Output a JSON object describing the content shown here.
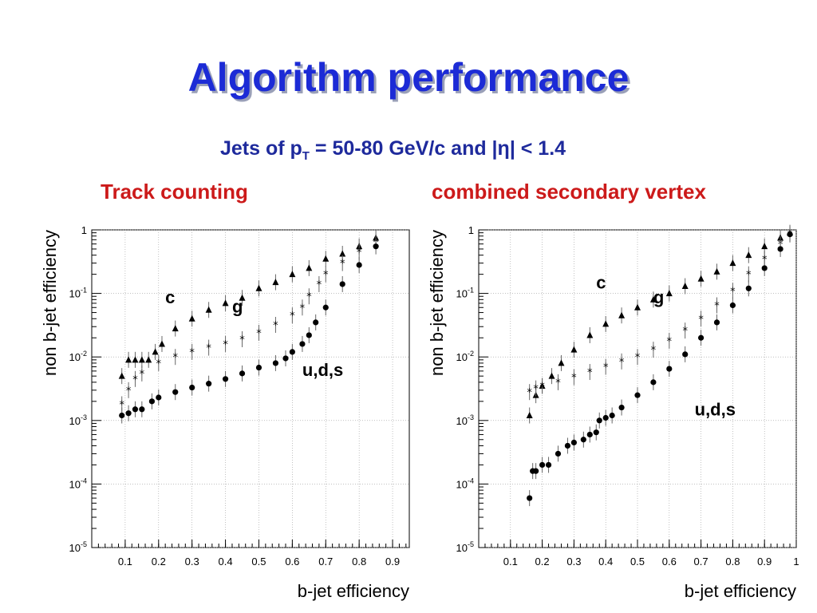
{
  "slide": {
    "title": "Algorithm performance",
    "subtitle_prefix": "Jets of p",
    "subtitle_sub": "T",
    "subtitle_suffix": " = 50-80 GeV/c and |η| < 1.4"
  },
  "chart_data": [
    {
      "type": "scatter",
      "title": "Track counting",
      "xlabel": "b-jet efficiency",
      "ylabel": "non b-jet efficiency",
      "xlim": [
        0.0,
        0.95
      ],
      "ylim": [
        1e-05,
        1
      ],
      "yscale": "log",
      "grid": true,
      "x_ticks": [
        "0.1",
        "0.2",
        "0.3",
        "0.4",
        "0.5",
        "0.6",
        "0.7",
        "0.8",
        "0.9"
      ],
      "y_ticks": [
        {
          "base": "10",
          "exp": "-5"
        },
        {
          "base": "10",
          "exp": "-4"
        },
        {
          "base": "10",
          "exp": "-3"
        },
        {
          "base": "10",
          "exp": "-2"
        },
        {
          "base": "10",
          "exp": "-1"
        },
        {
          "base": "1",
          "exp": ""
        }
      ],
      "series": [
        {
          "name": "c",
          "marker": "triangle",
          "x": [
            0.09,
            0.11,
            0.13,
            0.15,
            0.17,
            0.19,
            0.21,
            0.25,
            0.3,
            0.35,
            0.4,
            0.45,
            0.5,
            0.55,
            0.6,
            0.65,
            0.7,
            0.75,
            0.8,
            0.85
          ],
          "y": [
            0.005,
            0.009,
            0.009,
            0.009,
            0.009,
            0.012,
            0.016,
            0.028,
            0.04,
            0.055,
            0.07,
            0.085,
            0.12,
            0.15,
            0.2,
            0.25,
            0.35,
            0.42,
            0.55,
            0.75
          ]
        },
        {
          "name": "g",
          "marker": "star",
          "x": [
            0.09,
            0.11,
            0.13,
            0.15,
            0.2,
            0.25,
            0.3,
            0.35,
            0.4,
            0.45,
            0.5,
            0.55,
            0.6,
            0.63,
            0.65,
            0.68,
            0.7,
            0.75,
            0.8,
            0.85
          ],
          "y": [
            0.0018,
            0.003,
            0.0045,
            0.0055,
            0.008,
            0.01,
            0.012,
            0.014,
            0.016,
            0.019,
            0.024,
            0.032,
            0.045,
            0.06,
            0.09,
            0.14,
            0.2,
            0.3,
            0.45,
            0.65
          ]
        },
        {
          "name": "u,d,s",
          "marker": "circle",
          "x": [
            0.09,
            0.11,
            0.13,
            0.15,
            0.18,
            0.2,
            0.25,
            0.3,
            0.35,
            0.4,
            0.45,
            0.5,
            0.55,
            0.58,
            0.6,
            0.63,
            0.65,
            0.67,
            0.7,
            0.75,
            0.8,
            0.85
          ],
          "y": [
            0.0012,
            0.0013,
            0.0015,
            0.0015,
            0.002,
            0.0023,
            0.0028,
            0.0033,
            0.0038,
            0.0045,
            0.0055,
            0.0068,
            0.008,
            0.0095,
            0.012,
            0.016,
            0.022,
            0.035,
            0.06,
            0.14,
            0.28,
            0.55
          ]
        }
      ],
      "annotations": [
        {
          "text": "c",
          "x": 0.22,
          "y": 0.07
        },
        {
          "text": "g",
          "x": 0.42,
          "y": 0.05
        },
        {
          "text": "u,d,s",
          "x": 0.63,
          "y": 0.005
        }
      ]
    },
    {
      "type": "scatter",
      "title": "combined secondary vertex",
      "xlabel": "b-jet efficiency",
      "ylabel": "non b-jet efficiency",
      "xlim": [
        0.0,
        1.0
      ],
      "ylim": [
        1e-05,
        1
      ],
      "yscale": "log",
      "grid": true,
      "x_ticks": [
        "0.1",
        "0.2",
        "0.3",
        "0.4",
        "0.5",
        "0.6",
        "0.7",
        "0.8",
        "0.9",
        "1"
      ],
      "y_ticks": [
        {
          "base": "10",
          "exp": "-5"
        },
        {
          "base": "10",
          "exp": "-4"
        },
        {
          "base": "10",
          "exp": "-3"
        },
        {
          "base": "10",
          "exp": "-2"
        },
        {
          "base": "10",
          "exp": "-1"
        },
        {
          "base": "1",
          "exp": ""
        }
      ],
      "series": [
        {
          "name": "c",
          "marker": "triangle",
          "x": [
            0.16,
            0.18,
            0.2,
            0.23,
            0.26,
            0.3,
            0.35,
            0.4,
            0.45,
            0.5,
            0.55,
            0.6,
            0.65,
            0.7,
            0.75,
            0.8,
            0.85,
            0.9,
            0.95,
            0.98
          ],
          "y": [
            0.0012,
            0.0025,
            0.0035,
            0.005,
            0.008,
            0.013,
            0.022,
            0.033,
            0.045,
            0.06,
            0.08,
            0.1,
            0.13,
            0.17,
            0.22,
            0.3,
            0.4,
            0.55,
            0.75,
            0.9
          ]
        },
        {
          "name": "g",
          "marker": "star",
          "x": [
            0.16,
            0.18,
            0.2,
            0.25,
            0.3,
            0.35,
            0.4,
            0.45,
            0.5,
            0.55,
            0.6,
            0.65,
            0.7,
            0.75,
            0.8,
            0.85,
            0.9,
            0.95,
            0.98
          ],
          "y": [
            0.0028,
            0.0032,
            0.0035,
            0.004,
            0.0048,
            0.0058,
            0.007,
            0.0085,
            0.01,
            0.013,
            0.018,
            0.026,
            0.04,
            0.065,
            0.11,
            0.2,
            0.35,
            0.6,
            0.85
          ]
        },
        {
          "name": "u,d,s",
          "marker": "circle",
          "x": [
            0.16,
            0.17,
            0.18,
            0.2,
            0.22,
            0.25,
            0.28,
            0.3,
            0.33,
            0.35,
            0.37,
            0.38,
            0.4,
            0.42,
            0.45,
            0.5,
            0.55,
            0.6,
            0.65,
            0.7,
            0.75,
            0.8,
            0.85,
            0.9,
            0.95,
            0.98
          ],
          "y": [
            6e-05,
            0.00016,
            0.00016,
            0.0002,
            0.0002,
            0.0003,
            0.0004,
            0.00045,
            0.0005,
            0.0006,
            0.00065,
            0.001,
            0.0011,
            0.0012,
            0.0016,
            0.0025,
            0.004,
            0.0065,
            0.011,
            0.02,
            0.035,
            0.065,
            0.12,
            0.25,
            0.5,
            0.85
          ]
        }
      ],
      "annotations": [
        {
          "text": "c",
          "x": 0.37,
          "y": 0.12
        },
        {
          "text": "g",
          "x": 0.55,
          "y": 0.07
        },
        {
          "text": "u,d,s",
          "x": 0.68,
          "y": 0.0012
        }
      ]
    }
  ]
}
